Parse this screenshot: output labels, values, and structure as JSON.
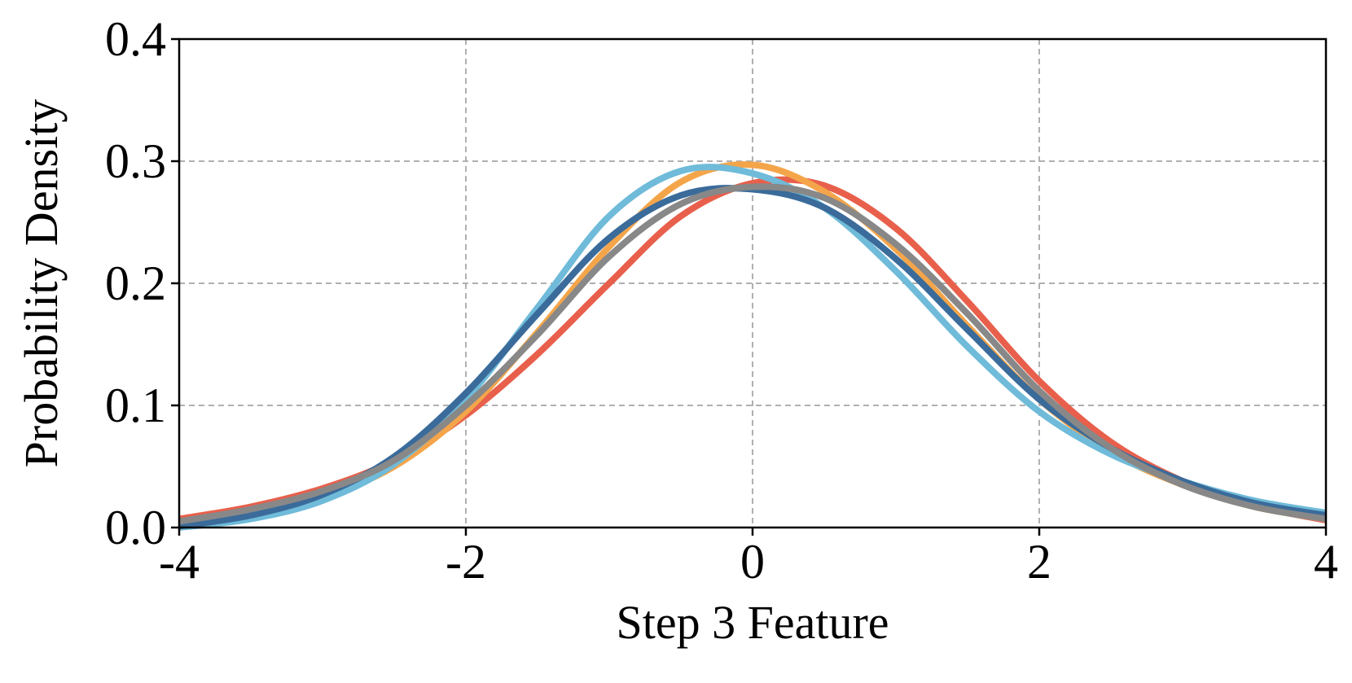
{
  "chart_data": {
    "type": "line",
    "xlabel": "Step 3 Feature",
    "ylabel": "Probability Density",
    "x": [
      -4,
      -3.5,
      -3,
      -2.5,
      -2,
      -1.5,
      -1,
      -0.5,
      0,
      0.5,
      1,
      1.5,
      2,
      2.5,
      3,
      3.5,
      4
    ],
    "series": [
      {
        "color": "#e8604c",
        "values": [
          0.007,
          0.017,
          0.032,
          0.055,
          0.092,
          0.142,
          0.2,
          0.255,
          0.282,
          0.28,
          0.245,
          0.185,
          0.12,
          0.07,
          0.038,
          0.018,
          0.006
        ]
      },
      {
        "color": "#f4a54a",
        "values": [
          0.003,
          0.01,
          0.025,
          0.05,
          0.095,
          0.16,
          0.23,
          0.283,
          0.297,
          0.275,
          0.228,
          0.165,
          0.105,
          0.062,
          0.035,
          0.017,
          0.007
        ]
      },
      {
        "color": "#6fbbd9",
        "values": [
          0.0,
          0.007,
          0.022,
          0.052,
          0.105,
          0.18,
          0.255,
          0.292,
          0.29,
          0.262,
          0.21,
          0.148,
          0.095,
          0.06,
          0.038,
          0.022,
          0.012
        ]
      },
      {
        "color": "#3a6b9a",
        "values": [
          0.001,
          0.01,
          0.027,
          0.058,
          0.11,
          0.175,
          0.237,
          0.272,
          0.277,
          0.262,
          0.22,
          0.162,
          0.105,
          0.065,
          0.038,
          0.02,
          0.01
        ]
      },
      {
        "color": "#888888",
        "values": [
          0.005,
          0.015,
          0.03,
          0.055,
          0.1,
          0.158,
          0.222,
          0.265,
          0.279,
          0.27,
          0.232,
          0.175,
          0.112,
          0.065,
          0.035,
          0.017,
          0.007
        ]
      }
    ],
    "xlim": [
      -4,
      4
    ],
    "ylim": [
      0,
      0.4
    ],
    "xticks": [
      -4,
      -2,
      0,
      2,
      4
    ],
    "yticks": [
      {
        "value": 0,
        "label": "0.0"
      },
      0.1,
      0.2,
      0.3,
      0.4
    ],
    "grid": true
  }
}
